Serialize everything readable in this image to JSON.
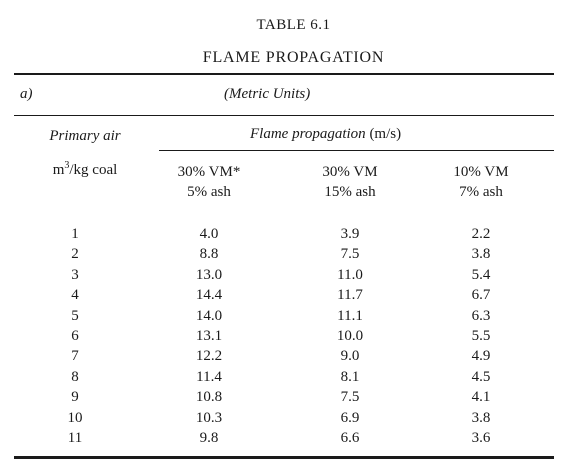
{
  "table": {
    "number": "TABLE 6.1",
    "title": "FLAME PROPAGATION",
    "section_label": "a)",
    "units_note": "(Metric Units)",
    "primary_air_header": "Primary air",
    "primary_air_unit_base": "m",
    "primary_air_unit_exp": "3",
    "primary_air_unit_rest": "/kg coal",
    "flame_header_italic": "Flame propagation",
    "flame_header_unit": "(m/s)",
    "columns": [
      {
        "line1": "30% VM*",
        "line2": "5% ash"
      },
      {
        "line1": "30% VM",
        "line2": "15% ash"
      },
      {
        "line1": "10% VM",
        "line2": "7% ash"
      }
    ],
    "rows": [
      {
        "air": "1",
        "v": [
          "4.0",
          "3.9",
          "2.2"
        ]
      },
      {
        "air": "2",
        "v": [
          "8.8",
          "7.5",
          "3.8"
        ]
      },
      {
        "air": "3",
        "v": [
          "13.0",
          "11.0",
          "5.4"
        ]
      },
      {
        "air": "4",
        "v": [
          "14.4",
          "11.7",
          "6.7"
        ]
      },
      {
        "air": "5",
        "v": [
          "14.0",
          "11.1",
          "6.3"
        ]
      },
      {
        "air": "6",
        "v": [
          "13.1",
          "10.0",
          "5.5"
        ]
      },
      {
        "air": "7",
        "v": [
          "12.2",
          "9.0",
          "4.9"
        ]
      },
      {
        "air": "8",
        "v": [
          "11.4",
          "8.1",
          "4.5"
        ]
      },
      {
        "air": "9",
        "v": [
          "10.8",
          "7.5",
          "4.1"
        ]
      },
      {
        "air": "10",
        "v": [
          "10.3",
          "6.9",
          "3.8"
        ]
      },
      {
        "air": "11",
        "v": [
          "9.8",
          "6.6",
          "3.6"
        ]
      }
    ]
  }
}
